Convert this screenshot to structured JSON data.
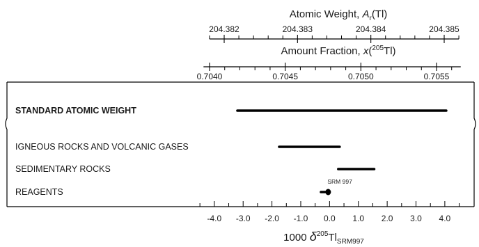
{
  "chart_data": {
    "type": "range",
    "title": "",
    "top_axis_1": {
      "label_prefix": "Atomic Weight, ",
      "label_var": "A",
      "label_sub": "r",
      "label_suffix": "(Tl)",
      "range": [
        204.3818,
        204.3852
      ],
      "tick_labels": [
        "204.382",
        "204.383",
        "204.384",
        "204.385"
      ],
      "tick_values": [
        204.382,
        204.383,
        204.384,
        204.385
      ],
      "minor_step": 0.0002
    },
    "top_axis_2": {
      "label_prefix": "Amount Fraction, ",
      "label_var": "x",
      "label_open": "(",
      "label_sup": "205",
      "label_suffix": "Tl)",
      "range": [
        0.70396,
        0.70566
      ],
      "tick_labels": [
        "0.7040",
        "0.7045",
        "0.7050",
        "0.7055"
      ],
      "tick_values": [
        0.704,
        0.7045,
        0.705,
        0.7055
      ],
      "minor_step": 0.0001
    },
    "x_axis": {
      "label_main": "1000 ",
      "label_delta": "δ",
      "label_sup": "205",
      "label_el": "Tl",
      "label_sub": "SRM997",
      "range": [
        -4.6,
        4.8
      ],
      "tick_labels": [
        "-4.0",
        "-3.0",
        "-2.0",
        "-1.0",
        "0.0",
        "1.0",
        "2.0",
        "3.0",
        "4.0"
      ],
      "tick_values": [
        -4,
        -3,
        -2,
        -1,
        0,
        1,
        2,
        3,
        4
      ],
      "minor_step": 0.5
    },
    "categories": [
      "STANDARD ATOMIC WEIGHT",
      "IGNEOUS ROCKS AND VOLCANIC GASES",
      "SEDIMENTARY ROCKS",
      "REAGENTS"
    ],
    "ranges": [
      {
        "category": "STANDARD ATOMIC WEIGHT",
        "min": -3.2,
        "max": 4.05,
        "bold": true
      },
      {
        "category": "IGNEOUS ROCKS AND VOLCANIC GASES",
        "min": -1.75,
        "max": 0.35,
        "bold": false
      },
      {
        "category": "SEDIMENTARY ROCKS",
        "min": 0.3,
        "max": 1.55,
        "bold": false
      },
      {
        "category": "REAGENTS",
        "min": -0.3,
        "max": 0.0,
        "bold": false
      }
    ],
    "annotation": {
      "text": "SRM 997",
      "category": "REAGENTS",
      "x": 0.0
    },
    "grid": false,
    "legend": "none",
    "colors": {
      "ink": "#000000",
      "text": "#1a1a1a",
      "background": "#ffffff"
    }
  }
}
